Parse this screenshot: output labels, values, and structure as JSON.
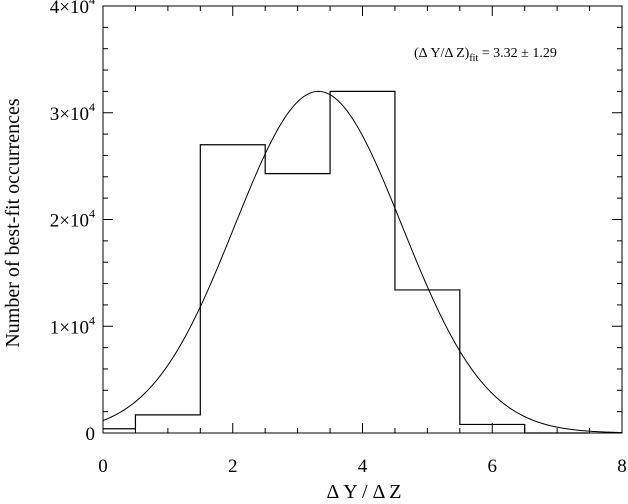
{
  "chart_data": {
    "type": "bar",
    "title": "",
    "xlabel": "Δ Y / Δ Z",
    "ylabel": "Number of best-fit occurrences",
    "xlim": [
      0,
      8
    ],
    "ylim": [
      0,
      40000
    ],
    "x_ticks": [
      0,
      2,
      4,
      6,
      8
    ],
    "y_ticks": [
      {
        "value": 0,
        "mantissa": "0",
        "exponent": ""
      },
      {
        "value": 10000,
        "mantissa": "1×10",
        "exponent": "4"
      },
      {
        "value": 20000,
        "mantissa": "2×10",
        "exponent": "4"
      },
      {
        "value": 30000,
        "mantissa": "3×10",
        "exponent": "4"
      },
      {
        "value": 40000,
        "mantissa": "4×10",
        "exponent": "4"
      }
    ],
    "histogram": {
      "bin_edges": [
        -0.5,
        0.5,
        1.5,
        2.5,
        3.5,
        4.5,
        5.5,
        6.5,
        7.5
      ],
      "counts": [
        400,
        1700,
        27000,
        24300,
        32000,
        13400,
        800,
        0
      ]
    },
    "gaussian_fit": {
      "mean": 3.32,
      "sigma": 1.29,
      "amplitude": 32000
    },
    "annotation": {
      "prefix": "(Δ Y/Δ Z)",
      "subscript": "fit",
      "value": " = 3.32 ± 1.29"
    },
    "grid": false,
    "legend": "none"
  }
}
